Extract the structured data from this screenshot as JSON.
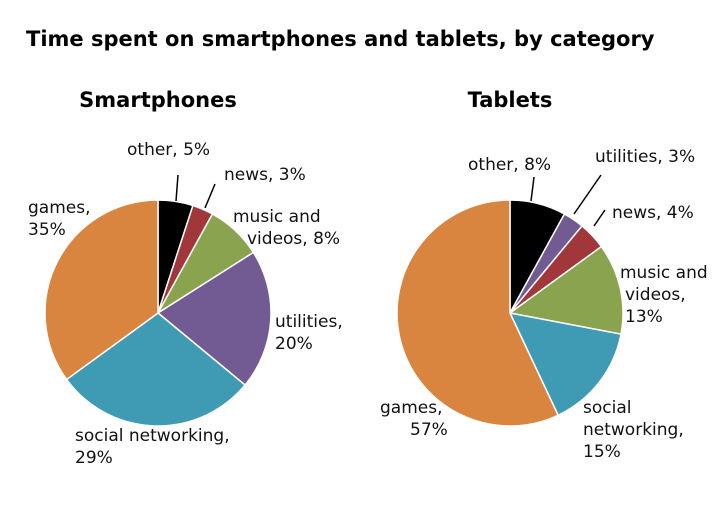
{
  "chart_data": [
    {
      "type": "pie",
      "title": "Time spent on smartphones and tablets, by category",
      "subtitle": "Smartphones",
      "start": "top, clockwise",
      "slices": [
        {
          "label": "other",
          "value": 5,
          "color": "#000000",
          "text": [
            "other, 5%"
          ]
        },
        {
          "label": "news",
          "value": 3,
          "color": "#a1373b",
          "text": [
            "news, 3%"
          ]
        },
        {
          "label": "music and videos",
          "value": 8,
          "color": "#8aa34f",
          "text": [
            "music and",
            "videos, 8%"
          ]
        },
        {
          "label": "utilities",
          "value": 20,
          "color": "#725a92",
          "text": [
            "utilities,",
            "20%"
          ]
        },
        {
          "label": "social networking",
          "value": 29,
          "color": "#3f9ab3",
          "text": [
            "social networking,",
            "29%"
          ]
        },
        {
          "label": "games",
          "value": 35,
          "color": "#d9843f",
          "text": [
            "games,",
            "35%"
          ]
        }
      ]
    },
    {
      "type": "pie",
      "subtitle": "Tablets",
      "start": "top, clockwise",
      "slices": [
        {
          "label": "other",
          "value": 8,
          "color": "#000000",
          "text": [
            "other, 8%"
          ]
        },
        {
          "label": "utilities",
          "value": 3,
          "color": "#725a92",
          "text": [
            "utilities, 3%"
          ]
        },
        {
          "label": "news",
          "value": 4,
          "color": "#a1373b",
          "text": [
            "news, 4%"
          ]
        },
        {
          "label": "music and videos",
          "value": 13,
          "color": "#8aa34f",
          "text": [
            "music and",
            "videos,",
            "13%"
          ]
        },
        {
          "label": "social networking",
          "value": 15,
          "color": "#3f9ab3",
          "text": [
            "social",
            "networking,",
            "15%"
          ]
        },
        {
          "label": "games",
          "value": 57,
          "color": "#d9843f",
          "text": [
            "games,",
            "57%"
          ]
        }
      ]
    }
  ]
}
